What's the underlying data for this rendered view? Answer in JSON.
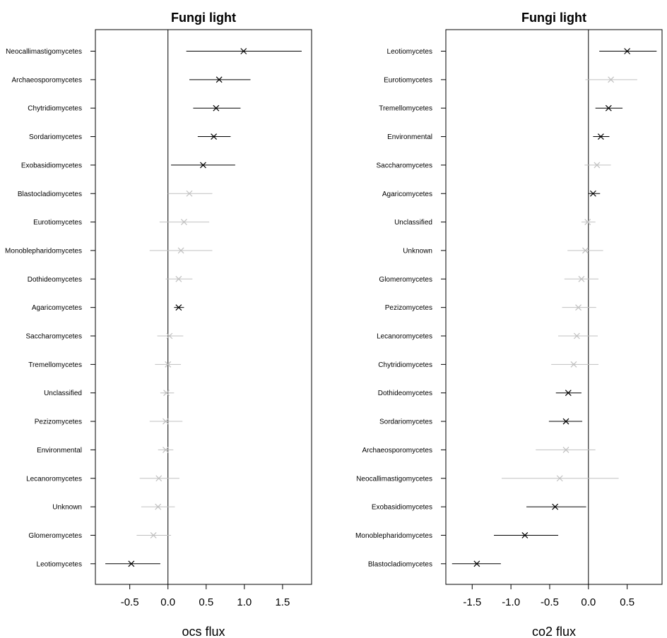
{
  "chart_data": [
    {
      "type": "forest",
      "title": "Fungi light",
      "xlabel": "ocs  flux",
      "xlim": [
        -0.95,
        1.88
      ],
      "xticks": [
        -0.5,
        0.0,
        0.5,
        1.0,
        1.5
      ],
      "xtick_labels": [
        "-0.5",
        "0.0",
        "0.5",
        "1.0",
        "1.5"
      ],
      "reference_line": 0,
      "marker": "X",
      "colors": {
        "significant": "#000000",
        "not_significant": "#c0c0c0"
      },
      "rows": [
        {
          "label": "Neocallimastigomycetes",
          "estimate": 0.99,
          "low": 0.24,
          "high": 1.75,
          "significant": true
        },
        {
          "label": "Archaeosporomycetes",
          "estimate": 0.67,
          "low": 0.28,
          "high": 1.08,
          "significant": true
        },
        {
          "label": "Chytridiomycetes",
          "estimate": 0.63,
          "low": 0.33,
          "high": 0.95,
          "significant": true
        },
        {
          "label": "Sordariomycetes",
          "estimate": 0.6,
          "low": 0.39,
          "high": 0.82,
          "significant": true
        },
        {
          "label": "Exobasidiomycetes",
          "estimate": 0.46,
          "low": 0.04,
          "high": 0.88,
          "significant": true
        },
        {
          "label": "Blastocladiomycetes",
          "estimate": 0.28,
          "low": 0.0,
          "high": 0.58,
          "significant": false
        },
        {
          "label": "Eurotiomycetes",
          "estimate": 0.21,
          "low": -0.11,
          "high": 0.54,
          "significant": false
        },
        {
          "label": "Monoblepharidomycetes",
          "estimate": 0.17,
          "low": -0.24,
          "high": 0.58,
          "significant": false
        },
        {
          "label": "Dothideomycetes",
          "estimate": 0.14,
          "low": -0.03,
          "high": 0.32,
          "significant": false
        },
        {
          "label": "Agaricomycetes",
          "estimate": 0.14,
          "low": 0.08,
          "high": 0.21,
          "significant": true
        },
        {
          "label": "Saccharomycetes",
          "estimate": 0.02,
          "low": -0.14,
          "high": 0.2,
          "significant": false
        },
        {
          "label": "Tremellomycetes",
          "estimate": 0.0,
          "low": -0.17,
          "high": 0.17,
          "significant": false
        },
        {
          "label": "Unclassified",
          "estimate": -0.02,
          "low": -0.1,
          "high": 0.08,
          "significant": false
        },
        {
          "label": "Pezizomycetes",
          "estimate": -0.03,
          "low": -0.24,
          "high": 0.19,
          "significant": false
        },
        {
          "label": "Environmental",
          "estimate": -0.03,
          "low": -0.13,
          "high": 0.07,
          "significant": false
        },
        {
          "label": "Lecanoromycetes",
          "estimate": -0.12,
          "low": -0.37,
          "high": 0.15,
          "significant": false
        },
        {
          "label": "Unknown",
          "estimate": -0.13,
          "low": -0.35,
          "high": 0.09,
          "significant": false
        },
        {
          "label": "Glomeromycetes",
          "estimate": -0.19,
          "low": -0.41,
          "high": 0.04,
          "significant": false
        },
        {
          "label": "Leotiomycetes",
          "estimate": -0.48,
          "low": -0.82,
          "high": -0.1,
          "significant": true
        }
      ]
    },
    {
      "type": "forest",
      "title": "Fungi light",
      "xlabel": "co2  flux",
      "xlim": [
        -1.84,
        0.95
      ],
      "xticks": [
        -1.5,
        -1.0,
        -0.5,
        0.0,
        0.5
      ],
      "xtick_labels": [
        "-1.5",
        "-1.0",
        "-0.5",
        "0.0",
        "0.5"
      ],
      "reference_line": 0,
      "marker": "X",
      "colors": {
        "significant": "#000000",
        "not_significant": "#c0c0c0"
      },
      "rows": [
        {
          "label": "Leotiomycetes",
          "estimate": 0.5,
          "low": 0.14,
          "high": 0.88,
          "significant": true
        },
        {
          "label": "Eurotiomycetes",
          "estimate": 0.29,
          "low": -0.04,
          "high": 0.63,
          "significant": false
        },
        {
          "label": "Tremellomycetes",
          "estimate": 0.26,
          "low": 0.09,
          "high": 0.44,
          "significant": true
        },
        {
          "label": "Environmental",
          "estimate": 0.16,
          "low": 0.06,
          "high": 0.27,
          "significant": true
        },
        {
          "label": "Saccharomycetes",
          "estimate": 0.11,
          "low": -0.05,
          "high": 0.29,
          "significant": false
        },
        {
          "label": "Agaricomycetes",
          "estimate": 0.06,
          "low": 0.0,
          "high": 0.15,
          "significant": true
        },
        {
          "label": "Unclassified",
          "estimate": -0.01,
          "low": -0.09,
          "high": 0.09,
          "significant": false
        },
        {
          "label": "Unknown",
          "estimate": -0.04,
          "low": -0.27,
          "high": 0.19,
          "significant": false
        },
        {
          "label": "Glomeromycetes",
          "estimate": -0.09,
          "low": -0.31,
          "high": 0.13,
          "significant": false
        },
        {
          "label": "Pezizomycetes",
          "estimate": -0.13,
          "low": -0.34,
          "high": 0.1,
          "significant": false
        },
        {
          "label": "Lecanoromycetes",
          "estimate": -0.15,
          "low": -0.39,
          "high": 0.12,
          "significant": false
        },
        {
          "label": "Chytridiomycetes",
          "estimate": -0.19,
          "low": -0.48,
          "high": 0.13,
          "significant": false
        },
        {
          "label": "Dothideomycetes",
          "estimate": -0.26,
          "low": -0.42,
          "high": -0.09,
          "significant": true
        },
        {
          "label": "Sordariomycetes",
          "estimate": -0.29,
          "low": -0.51,
          "high": -0.08,
          "significant": true
        },
        {
          "label": "Archaeosporomycetes",
          "estimate": -0.29,
          "low": -0.68,
          "high": 0.09,
          "significant": false
        },
        {
          "label": "Neocallimastigomycetes",
          "estimate": -0.37,
          "low": -1.12,
          "high": 0.39,
          "significant": false
        },
        {
          "label": "Exobasidiomycetes",
          "estimate": -0.43,
          "low": -0.8,
          "high": -0.03,
          "significant": true
        },
        {
          "label": "Monoblepharidomycetes",
          "estimate": -0.82,
          "low": -1.22,
          "high": -0.39,
          "significant": true
        },
        {
          "label": "Blastocladiomycetes",
          "estimate": -1.44,
          "low": -1.76,
          "high": -1.13,
          "significant": true
        }
      ]
    }
  ]
}
